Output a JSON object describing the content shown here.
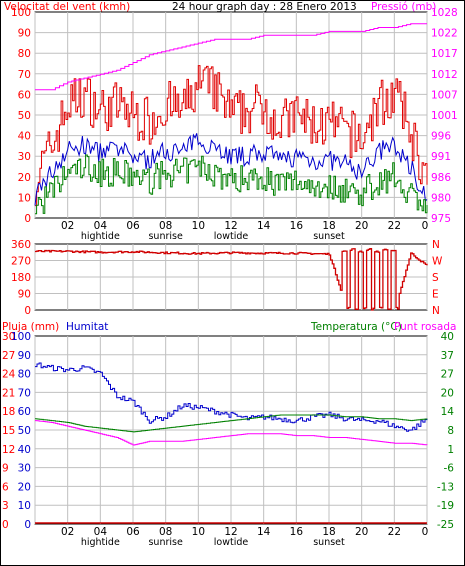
{
  "header": {
    "wind_label": "Velocitat del vent (kmh)",
    "title": "24 hour graph day : 28 Enero 2013",
    "pressure_label": "Pressió (mb)"
  },
  "labels_bottom": {
    "rain_label": "Pluja (mm)",
    "humidity_label": "Humitat",
    "temp_label": "Temperatura (°C)",
    "dew_label": "Punt rosada"
  },
  "colors": {
    "wind_gust": "#e00000",
    "wind_avg": "#0000cc",
    "wind_low": "#008000",
    "pressure": "#ff00ff",
    "direction": "#d00000",
    "humidity": "#0000cc",
    "temperature": "#008000",
    "dewpoint": "#ff00ff",
    "rain": "#d00000",
    "grid": "#c0c0c0",
    "red_text": "#ff0000",
    "green_text": "#008000",
    "blue_text": "#0000cc"
  },
  "chart_data": [
    {
      "type": "line",
      "title": "24 hour graph day : 28 Enero 2013",
      "ylabel": "Velocitat del vent (kmh)",
      "y2label": "Pressió (mb)",
      "ylim": [
        0,
        100
      ],
      "y2lim": [
        975,
        1028
      ],
      "yticks": [
        "100",
        "90",
        "80",
        "70",
        "60",
        "50",
        "40",
        "30",
        "20",
        "10",
        "0"
      ],
      "y2ticks": [
        "1028",
        "1022",
        "1017",
        "1012",
        "1007",
        "1001",
        "996",
        "991",
        "986",
        "980",
        "975"
      ],
      "xticks": [
        "02",
        "04",
        "06",
        "08",
        "10",
        "12",
        "14",
        "16",
        "18",
        "20",
        "22",
        "0"
      ],
      "events": [
        {
          "label": "hightide",
          "hour": 4
        },
        {
          "label": "sunrise",
          "hour": 8
        },
        {
          "label": "lowtide",
          "hour": 12
        },
        {
          "label": "sunset",
          "hour": 18
        }
      ],
      "x": [
        0,
        1,
        2,
        3,
        4,
        5,
        6,
        7,
        8,
        9,
        10,
        11,
        12,
        13,
        14,
        15,
        16,
        17,
        18,
        19,
        20,
        21,
        22,
        23,
        24
      ],
      "series": [
        {
          "name": "gust",
          "y": [
            18,
            35,
            55,
            60,
            52,
            55,
            50,
            47,
            55,
            52,
            65,
            62,
            50,
            52,
            55,
            45,
            50,
            45,
            45,
            42,
            38,
            55,
            60,
            42,
            15
          ]
        },
        {
          "name": "average",
          "y": [
            12,
            22,
            33,
            35,
            32,
            33,
            30,
            28,
            33,
            32,
            38,
            35,
            30,
            30,
            32,
            28,
            30,
            28,
            28,
            26,
            22,
            32,
            35,
            25,
            10
          ]
        },
        {
          "name": "low",
          "y": [
            5,
            12,
            22,
            25,
            22,
            22,
            20,
            18,
            22,
            22,
            25,
            22,
            18,
            20,
            20,
            16,
            18,
            16,
            15,
            14,
            12,
            18,
            20,
            12,
            5
          ]
        },
        {
          "name": "pressure",
          "y": [
            1008,
            1008,
            1010,
            1011,
            1012,
            1013,
            1015,
            1017,
            1018,
            1019,
            1020,
            1021,
            1021,
            1021,
            1022,
            1022,
            1022,
            1022,
            1023,
            1023,
            1023,
            1024,
            1024,
            1025,
            1025
          ]
        }
      ]
    },
    {
      "type": "line",
      "ylabel": "",
      "yticks": [
        "360",
        "270",
        "180",
        "90",
        "0"
      ],
      "y2ticks": [
        "N",
        "W",
        "S",
        "E",
        "N"
      ],
      "ylim": [
        0,
        360
      ],
      "x": [
        0,
        2,
        4,
        6,
        8,
        10,
        12,
        14,
        16,
        18,
        19,
        20,
        21,
        22,
        23,
        24
      ],
      "series": [
        {
          "name": "direction",
          "y": [
            320,
            320,
            315,
            318,
            312,
            308,
            312,
            310,
            310,
            305,
            30,
            0,
            310,
            0,
            310,
            240
          ]
        }
      ]
    },
    {
      "type": "line",
      "title": "",
      "ylabel": "Pluja (mm)",
      "y2label": "Temperatura (°C)",
      "yticks_rain": [
        "30",
        "27",
        "24",
        "21",
        "18",
        "15",
        "12",
        "9",
        "6",
        "3",
        "0"
      ],
      "yticks_hum": [
        "100",
        "90",
        "80",
        "70",
        "60",
        "50",
        "40",
        "30",
        "20",
        "10",
        "0"
      ],
      "y2ticks": [
        "40",
        "37",
        "27",
        "20",
        "14",
        "8",
        "1",
        "-6",
        "-13",
        "-19",
        "-25"
      ],
      "ylim": [
        0,
        100
      ],
      "x": [
        0,
        1,
        2,
        3,
        4,
        5,
        6,
        7,
        8,
        9,
        10,
        11,
        12,
        13,
        14,
        15,
        16,
        17,
        18,
        19,
        20,
        21,
        22,
        23,
        24
      ],
      "series": [
        {
          "name": "Humitat",
          "y": [
            85,
            83,
            82,
            83,
            80,
            68,
            65,
            55,
            57,
            63,
            62,
            60,
            58,
            56,
            57,
            56,
            55,
            57,
            58,
            56,
            55,
            55,
            52,
            50,
            56
          ]
        },
        {
          "name": "Temperatura",
          "y": [
            56,
            55,
            54,
            52,
            51,
            50,
            49,
            50,
            51,
            52,
            53,
            54,
            55,
            56,
            57,
            58,
            58,
            58,
            58,
            57,
            57,
            56,
            56,
            55,
            56
          ]
        },
        {
          "name": "Punt rosada",
          "y": [
            55,
            54,
            52,
            50,
            48,
            46,
            42,
            44,
            44,
            44,
            45,
            46,
            47,
            48,
            48,
            48,
            47,
            47,
            46,
            46,
            45,
            44,
            43,
            43,
            42
          ]
        },
        {
          "name": "Pluja",
          "y": [
            0,
            0,
            0,
            0,
            0,
            0,
            0,
            0,
            0,
            0,
            0,
            0,
            0,
            0,
            0,
            0,
            0,
            0,
            0,
            0,
            0,
            0,
            0,
            0,
            0
          ]
        }
      ]
    }
  ]
}
